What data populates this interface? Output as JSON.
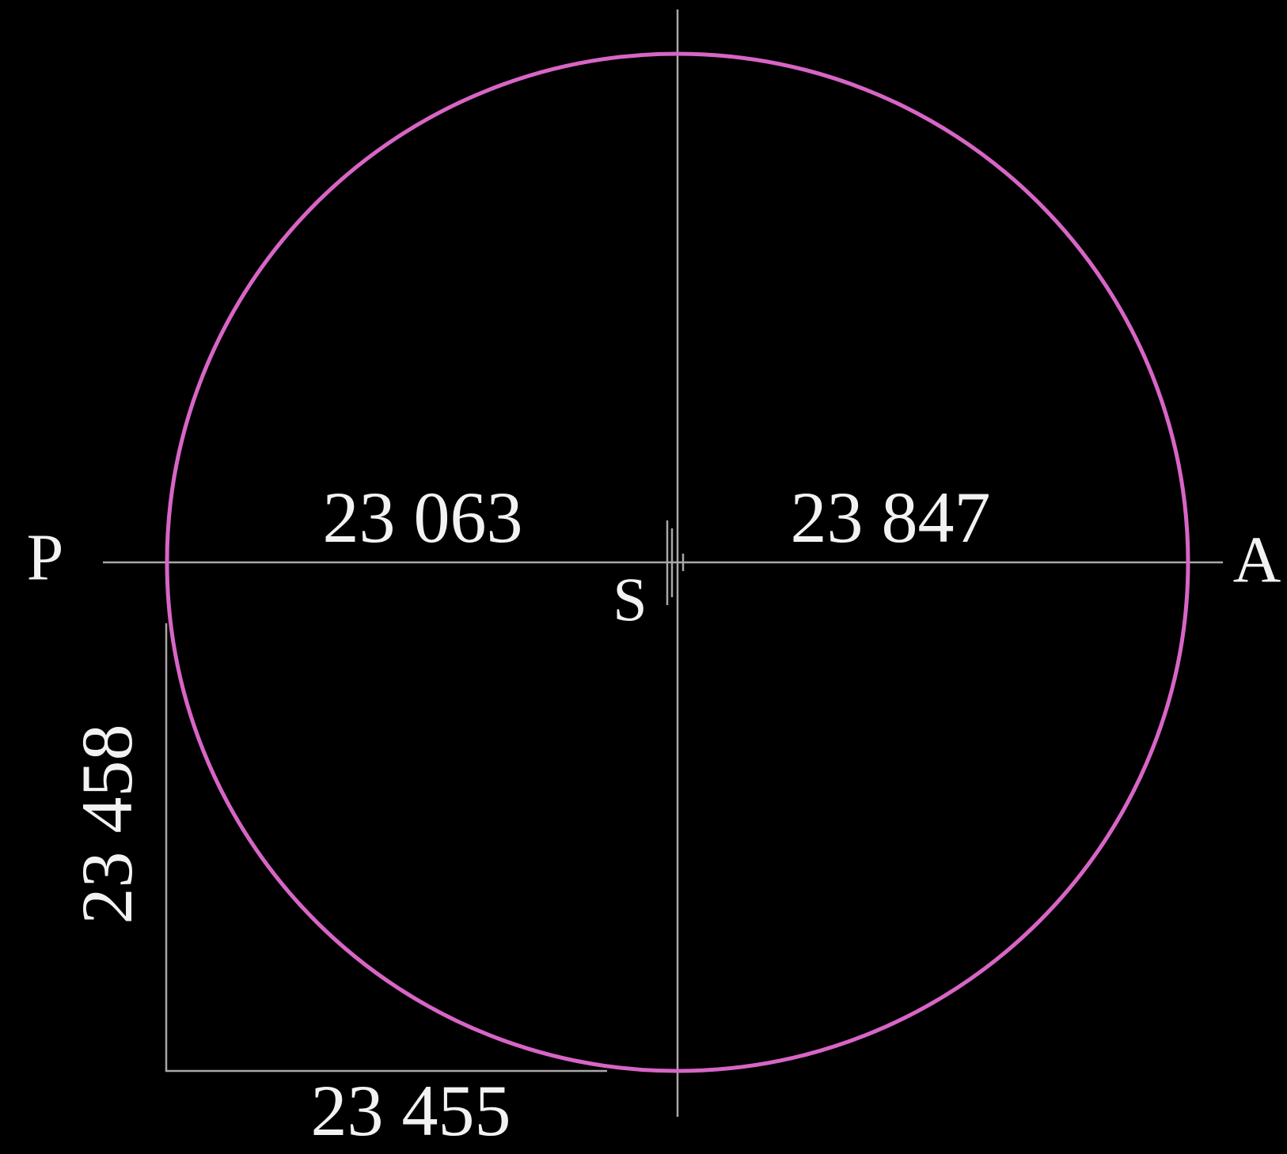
{
  "diagram": {
    "points": {
      "perihelion": "P",
      "aphelion": "A",
      "sun": "S"
    },
    "distances": {
      "left": "23 063",
      "right": "23 847",
      "bottom": "23 455",
      "side": "23 458"
    }
  }
}
